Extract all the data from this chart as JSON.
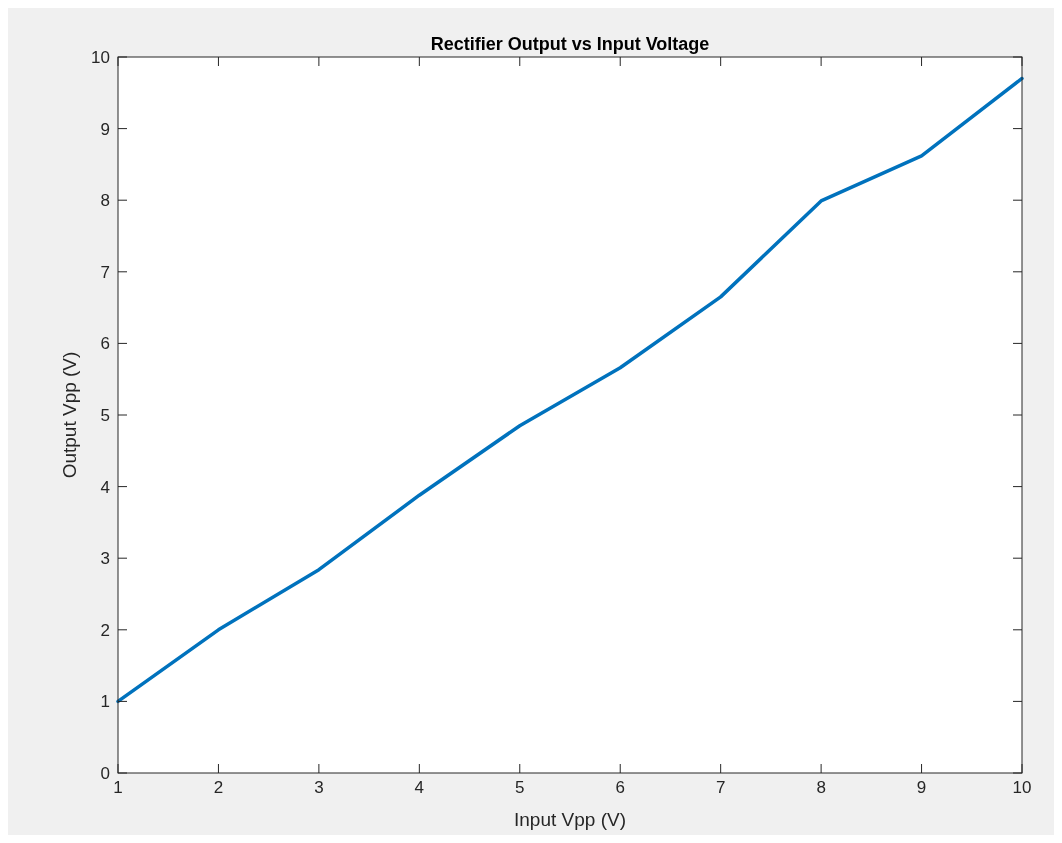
{
  "chart_data": {
    "type": "line",
    "title": "Rectifier Output vs Input Voltage",
    "xlabel": "Input Vpp (V)",
    "ylabel": "Output Vpp (V)",
    "x": [
      1,
      2,
      3,
      4,
      5,
      6,
      7,
      8,
      9,
      10
    ],
    "series": [
      {
        "color": "#0072bd",
        "values": [
          1.0,
          2.0,
          2.84,
          3.88,
          4.85,
          5.66,
          6.65,
          7.99,
          8.62,
          9.7
        ]
      }
    ],
    "xlim": [
      1,
      10
    ],
    "xticks": [
      1,
      2,
      3,
      4,
      5,
      6,
      7,
      8,
      9,
      10
    ],
    "ylim": [
      0,
      10
    ],
    "yticks": [
      0,
      1,
      2,
      3,
      4,
      5,
      6,
      7,
      8,
      9,
      10
    ],
    "grid": false,
    "marker": "none",
    "line_style": "solid"
  }
}
